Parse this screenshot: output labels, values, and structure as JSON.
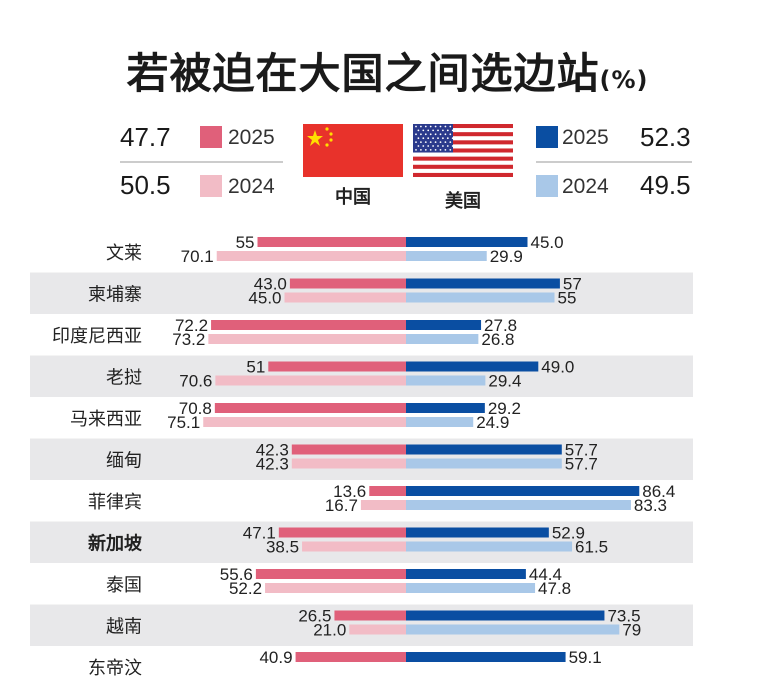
{
  "title": "若被迫在大国之间选边站",
  "unit": "(%)",
  "legend": {
    "china": {
      "label": "中国",
      "total_2025": "47.7",
      "total_2024": "50.5",
      "year_2025": "2025",
      "year_2024": "2024"
    },
    "usa": {
      "label": "美国",
      "total_2025": "52.3",
      "total_2024": "49.5",
      "year_2025": "2025",
      "year_2024": "2024"
    }
  },
  "colors": {
    "china_2025": "#e0607a",
    "china_2024": "#f2bcc6",
    "usa_2025": "#0a4ea2",
    "usa_2024": "#a9c8e8",
    "row_stripe": "#e8e8ea"
  },
  "chart_data": {
    "type": "bar",
    "orientation": "horizontal-diverging",
    "categories": [
      "文莱",
      "柬埔寨",
      "印度尼西亚",
      "老挝",
      "马来西亚",
      "缅甸",
      "菲律宾",
      "新加坡",
      "泰国",
      "越南",
      "东帝汶"
    ],
    "highlighted_category": "新加坡",
    "series": [
      {
        "name": "中国 2025",
        "values": [
          "55",
          "43.0",
          "72.2",
          "51",
          "70.8",
          "42.3",
          "13.6",
          "47.1",
          "55.6",
          "26.5",
          "40.9"
        ]
      },
      {
        "name": "中国 2024",
        "values": [
          "70.1",
          "45.0",
          "73.2",
          "70.6",
          "75.1",
          "42.3",
          "16.7",
          "38.5",
          "52.2",
          "21.0",
          null
        ]
      },
      {
        "name": "美国 2025",
        "values": [
          "45.0",
          "57",
          "27.8",
          "49.0",
          "29.2",
          "57.7",
          "86.4",
          "52.9",
          "44.4",
          "73.5",
          "59.1"
        ]
      },
      {
        "name": "美国 2024",
        "values": [
          "29.9",
          "55",
          "26.8",
          "29.4",
          "24.9",
          "57.7",
          "83.3",
          "61.5",
          "47.8",
          "79",
          null
        ]
      }
    ],
    "xlim": [
      0,
      100
    ]
  }
}
